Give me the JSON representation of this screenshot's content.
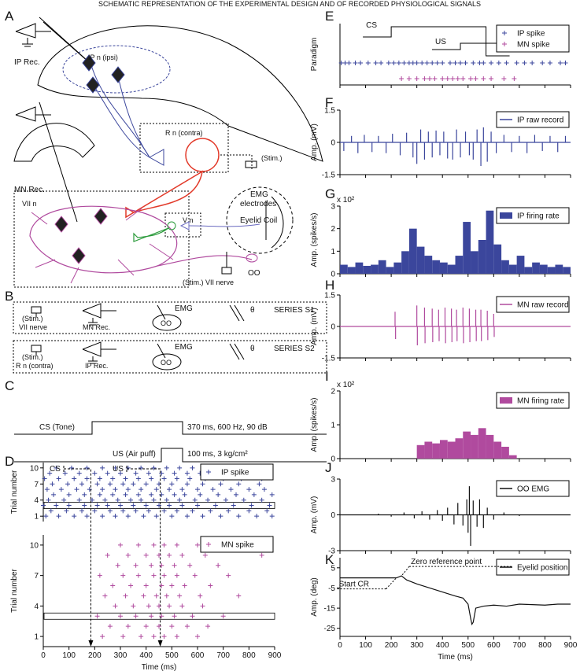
{
  "title": "SCHEMATIC REPRESENTATION OF THE EXPERIMENTAL DESIGN AND OF RECORDED  PHYSIOLOGICAL SIGNALS",
  "panel_labels": [
    "A",
    "B",
    "C",
    "D",
    "E",
    "F",
    "G",
    "H",
    "I",
    "J",
    "K"
  ],
  "schematic": {
    "ip_rec": "IP Rec.",
    "ip_n": "IP n (ipsi)",
    "mn_rec": "MN Rec.",
    "r_n": "R n (contra)",
    "stim": "(Stim.)",
    "emg_1": "EMG",
    "emg_2": "electrodes",
    "eyelid_coil": "Eyelid Coil",
    "vii_n": "VII n",
    "v_n": "V n",
    "oo": "OO",
    "stim_vii": "(Stim.) VII nerve"
  },
  "series_boxes": [
    {
      "stim_1": "(Stim.)",
      "stim_2": "VII nerve",
      "rec": "MN Rec.",
      "emg": "EMG",
      "oo": "OO",
      "theta": "θ",
      "name": "SERIES S1"
    },
    {
      "stim_1": "(Stim.)",
      "stim_2": "R n (contra)",
      "rec": "IP Rec.",
      "emg": "EMG",
      "oo": "OO",
      "theta": "θ",
      "name": "SERIES S2"
    }
  ],
  "protocol": {
    "cs_label": "CS (Tone)",
    "cs_desc": "370 ms, 600 Hz, 90 dB",
    "us_label": "US (Air puff)",
    "us_desc": "100 ms, 3 kg/cm²"
  },
  "chart_data": [
    {
      "type": "raster",
      "name": "IP spike",
      "color": "#3b469c",
      "legend": "upper right",
      "ylabel": "Trial number",
      "xlim": [
        0,
        900
      ],
      "ylim": [
        0,
        11
      ],
      "yticks": [
        1,
        4,
        7,
        10
      ],
      "highlight_trial": 3,
      "markers": [
        {
          "label": "CS",
          "t": 185
        },
        {
          "label": "US",
          "t": 455
        }
      ],
      "trial_numbers": [
        1,
        2,
        3,
        4,
        5,
        6,
        7,
        8,
        9,
        10
      ],
      "spike_times": [
        [
          10,
          60,
          120,
          170,
          230,
          280,
          330,
          390,
          440,
          500,
          560,
          620,
          690,
          760,
          830,
          890
        ],
        [
          30,
          90,
          150,
          200,
          260,
          310,
          360,
          410,
          470,
          520,
          580,
          650,
          720,
          800,
          870
        ],
        [
          0,
          50,
          100,
          160,
          210,
          250,
          300,
          350,
          400,
          450,
          490,
          540,
          600,
          670,
          740,
          810,
          880
        ],
        [
          20,
          80,
          140,
          190,
          240,
          290,
          340,
          380,
          430,
          480,
          530,
          590,
          640,
          710,
          780,
          850
        ],
        [
          40,
          100,
          160,
          220,
          270,
          320,
          370,
          420,
          460,
          510,
          550,
          610,
          680,
          750,
          820,
          890
        ],
        [
          15,
          70,
          130,
          180,
          230,
          280,
          330,
          380,
          440,
          490,
          540,
          600,
          660,
          730,
          800,
          860
        ],
        [
          35,
          95,
          150,
          210,
          260,
          310,
          350,
          400,
          450,
          500,
          560,
          620,
          690,
          760,
          840
        ],
        [
          5,
          60,
          120,
          170,
          220,
          270,
          320,
          370,
          420,
          470,
          520,
          570,
          630,
          700,
          770,
          850
        ],
        [
          25,
          85,
          140,
          200,
          250,
          300,
          360,
          410,
          460,
          510,
          560,
          610,
          670,
          740,
          810,
          880
        ],
        [
          50,
          110,
          170,
          230,
          280,
          330,
          380,
          430,
          480,
          530,
          580,
          640,
          710,
          780,
          860
        ]
      ]
    },
    {
      "type": "raster",
      "name": "MN spike",
      "color": "#b04a9e",
      "legend": "upper right",
      "ylabel": "Trial number",
      "xlabel": "Time (ms)",
      "xlim": [
        0,
        900
      ],
      "ylim": [
        0,
        11
      ],
      "yticks": [
        1,
        4,
        7,
        10
      ],
      "xticks": [
        0,
        100,
        200,
        300,
        400,
        500,
        600,
        700,
        800,
        900
      ],
      "xtick_labels": true,
      "highlight_trial": 3,
      "trial_numbers": [
        1,
        2,
        3,
        4,
        5,
        6,
        7,
        8,
        9,
        10
      ],
      "spike_times": [
        [
          230,
          310,
          380,
          430,
          470,
          520,
          600
        ],
        [
          260,
          330,
          400,
          450,
          500,
          560,
          640
        ],
        [
          210,
          300,
          360,
          420,
          460,
          510,
          580,
          700
        ],
        [
          280,
          350,
          410,
          450,
          490,
          540,
          620
        ],
        [
          240,
          320,
          390,
          440,
          480,
          530,
          610,
          760
        ],
        [
          270,
          340,
          400,
          460,
          500,
          550,
          650
        ],
        [
          220,
          310,
          370,
          430,
          470,
          520,
          590,
          720
        ],
        [
          290,
          360,
          420,
          460,
          510,
          570,
          680
        ],
        [
          250,
          330,
          400,
          450,
          490,
          540,
          630,
          850
        ],
        [
          300,
          370,
          430,
          470,
          520,
          600,
          780
        ]
      ]
    },
    {
      "type": "paradigm",
      "ylabel": "Paradigm",
      "xlim": [
        0,
        900
      ],
      "legend": "upper right",
      "xticks": [
        0,
        100,
        200,
        300,
        400,
        500,
        600,
        700,
        800,
        900
      ],
      "xtick_labels": false,
      "cs": {
        "label": "CS",
        "onset": 200,
        "offset": 570
      },
      "us": {
        "label": "US",
        "onset": 470,
        "offset": 570
      },
      "series": [
        {
          "name": "IP spike",
          "color": "#3b469c",
          "values": [
            5,
            20,
            35,
            60,
            80,
            110,
            140,
            160,
            190,
            210,
            230,
            250,
            270,
            285,
            300,
            320,
            340,
            360,
            380,
            400,
            430,
            450,
            470,
            490,
            520,
            545,
            560,
            590,
            620,
            650,
            690,
            720,
            750,
            790,
            820,
            860,
            880
          ]
        },
        {
          "name": "MN spike",
          "color": "#b04a9e",
          "values": [
            240,
            270,
            300,
            330,
            350,
            370,
            400,
            420,
            440,
            460,
            480,
            510,
            530,
            560,
            590,
            640,
            680
          ]
        }
      ]
    },
    {
      "type": "trace",
      "name": "IP raw record",
      "color": "#3b469c",
      "legend": "upper right",
      "ylabel": "Amp. (mV)",
      "xlim": [
        0,
        900
      ],
      "ylim": [
        -1.5,
        1.5
      ],
      "yticks": [
        1.5,
        0,
        -1.5
      ],
      "xticks": [
        0,
        100,
        200,
        300,
        400,
        500,
        600,
        700,
        800,
        900
      ],
      "xtick_labels": false,
      "x": [
        15,
        45,
        70,
        95,
        125,
        150,
        180,
        205,
        235,
        260,
        285,
        300,
        315,
        330,
        345,
        360,
        375,
        390,
        405,
        420,
        440,
        455,
        470,
        490,
        505,
        520,
        535,
        550,
        560,
        575,
        590,
        610,
        640,
        670,
        700,
        730,
        760,
        790,
        820,
        850,
        880
      ],
      "values": [
        -0.4,
        0.3,
        -0.5,
        0.35,
        -0.45,
        0.3,
        -0.5,
        0.4,
        -0.6,
        0.45,
        -0.7,
        -1.0,
        0.6,
        -0.8,
        0.5,
        -0.7,
        0.55,
        -0.6,
        0.5,
        -0.75,
        -0.8,
        0.6,
        -0.7,
        0.5,
        -0.6,
        -0.8,
        0.6,
        -1.1,
        0.7,
        -0.9,
        0.5,
        -0.5,
        0.35,
        -0.45,
        0.3,
        -0.5,
        0.35,
        -0.4,
        0.3,
        -0.45,
        0.3
      ]
    },
    {
      "type": "histogram",
      "name": "IP firing rate",
      "color": "#3b469c",
      "legend": "upper right",
      "ylabel": "Amp. (spikes/s)",
      "y_multiplier": "x 10²",
      "xlim": [
        0,
        900
      ],
      "ylim": [
        0,
        3
      ],
      "yticks": [
        0,
        1,
        2,
        3
      ],
      "xticks": [
        0,
        100,
        200,
        300,
        400,
        500,
        600,
        700,
        800,
        900
      ],
      "xtick_labels": false,
      "bins": [
        0,
        30,
        60,
        90,
        120,
        150,
        180,
        210,
        240,
        270,
        300,
        330,
        360,
        390,
        420,
        450,
        480,
        510,
        540,
        570,
        600,
        630,
        660,
        690,
        720,
        750,
        780,
        810,
        840,
        870,
        900
      ],
      "values": [
        0.4,
        0.3,
        0.5,
        0.35,
        0.4,
        0.6,
        0.3,
        0.5,
        1.0,
        2.0,
        1.2,
        0.8,
        0.6,
        0.5,
        0.4,
        0.8,
        2.3,
        1.0,
        1.5,
        2.8,
        1.3,
        0.6,
        0.4,
        0.8,
        0.3,
        0.5,
        0.4,
        0.3,
        0.4,
        0.3
      ]
    },
    {
      "type": "trace",
      "name": "MN raw record",
      "color": "#b04a9e",
      "legend": "upper right",
      "ylabel": "Amp. (mV)",
      "xlim": [
        0,
        900
      ],
      "ylim": [
        -1.5,
        1.5
      ],
      "yticks": [
        1.5,
        0,
        -1.5
      ],
      "xticks": [
        0,
        100,
        200,
        300,
        400,
        500,
        600,
        700,
        800,
        900
      ],
      "xtick_labels": false,
      "x": [
        215,
        217,
        300,
        302,
        330,
        332,
        360,
        362,
        385,
        387,
        410,
        412,
        435,
        437,
        455,
        457,
        480,
        482,
        505,
        507,
        530,
        532,
        550,
        552,
        575,
        577,
        600,
        602
      ],
      "values": [
        0.7,
        -0.6,
        1.0,
        -0.9,
        0.9,
        -0.8,
        0.85,
        -0.75,
        0.8,
        -0.7,
        0.9,
        -0.8,
        0.85,
        -0.75,
        0.8,
        -0.7,
        0.9,
        -0.8,
        0.85,
        -0.75,
        0.8,
        -0.7,
        0.8,
        -0.7,
        0.75,
        -0.65,
        0.6,
        -0.5
      ]
    },
    {
      "type": "histogram",
      "name": "MN firing rate",
      "color": "#b04a9e",
      "legend": "upper right",
      "ylabel": "Amp. (spikes/s)",
      "y_multiplier": "x 10²",
      "xlim": [
        0,
        900
      ],
      "ylim": [
        0,
        2
      ],
      "yticks": [
        0,
        1,
        2
      ],
      "xticks": [
        0,
        100,
        200,
        300,
        400,
        500,
        600,
        700,
        800,
        900
      ],
      "xtick_labels": false,
      "bins": [
        0,
        30,
        60,
        90,
        120,
        150,
        180,
        210,
        240,
        270,
        300,
        330,
        360,
        390,
        420,
        450,
        480,
        510,
        540,
        570,
        600,
        630,
        660,
        690,
        720,
        750,
        780,
        810,
        840,
        870,
        900
      ],
      "values": [
        0,
        0,
        0,
        0,
        0,
        0,
        0,
        0,
        0,
        0,
        0.4,
        0.5,
        0.45,
        0.55,
        0.5,
        0.6,
        0.8,
        0.7,
        0.9,
        0.7,
        0.5,
        0.35,
        0.1,
        0,
        0,
        0,
        0,
        0,
        0,
        0
      ]
    },
    {
      "type": "trace",
      "name": "OO EMG",
      "color": "#111111",
      "legend": "upper right",
      "ylabel": "Amp. (mV)",
      "xlim": [
        0,
        900
      ],
      "ylim": [
        -3,
        3
      ],
      "yticks": [
        3,
        0,
        -3
      ],
      "xticks": [
        0,
        100,
        200,
        300,
        400,
        500,
        600,
        700,
        800,
        900
      ],
      "xtick_labels": false,
      "x": [
        150,
        200,
        250,
        290,
        320,
        350,
        380,
        400,
        420,
        445,
        460,
        480,
        495,
        500,
        505,
        510,
        520,
        535,
        545,
        560,
        575,
        600,
        640,
        700
      ],
      "values": [
        0.1,
        -0.15,
        0.2,
        -0.3,
        0.3,
        -0.4,
        0.4,
        -0.5,
        0.6,
        -0.8,
        1.0,
        -0.9,
        1.3,
        -1.5,
        2.4,
        -2.6,
        1.2,
        -1.0,
        1.3,
        -1.1,
        0.6,
        -0.4,
        0.2,
        -0.1
      ]
    },
    {
      "type": "line",
      "name": "Eyelid position",
      "color": "#111111",
      "legend": "upper right",
      "ylabel": "Amp. (deg)",
      "xlabel": "Time (ms)",
      "xlim": [
        0,
        900
      ],
      "ylim": [
        -29,
        10
      ],
      "yticks": [
        5,
        -5,
        -15,
        -25
      ],
      "xticks": [
        0,
        100,
        200,
        300,
        400,
        500,
        600,
        700,
        800,
        900
      ],
      "xtick_labels": true,
      "annotations": [
        {
          "text": "Zero reference point",
          "x": 240,
          "y": 1
        },
        {
          "text": "Start CR",
          "x": 220,
          "y": 0
        }
      ],
      "x": [
        0,
        220,
        240,
        260,
        300,
        350,
        400,
        450,
        480,
        500,
        510,
        515,
        520,
        530,
        560,
        600,
        650,
        700,
        800,
        850,
        900
      ],
      "values": [
        0,
        0,
        1,
        -1,
        -3,
        -5,
        -7,
        -9,
        -10,
        -13,
        -20,
        -23,
        -22,
        -15,
        -14,
        -13.5,
        -14,
        -13,
        -13.5,
        -13,
        -13
      ]
    }
  ]
}
